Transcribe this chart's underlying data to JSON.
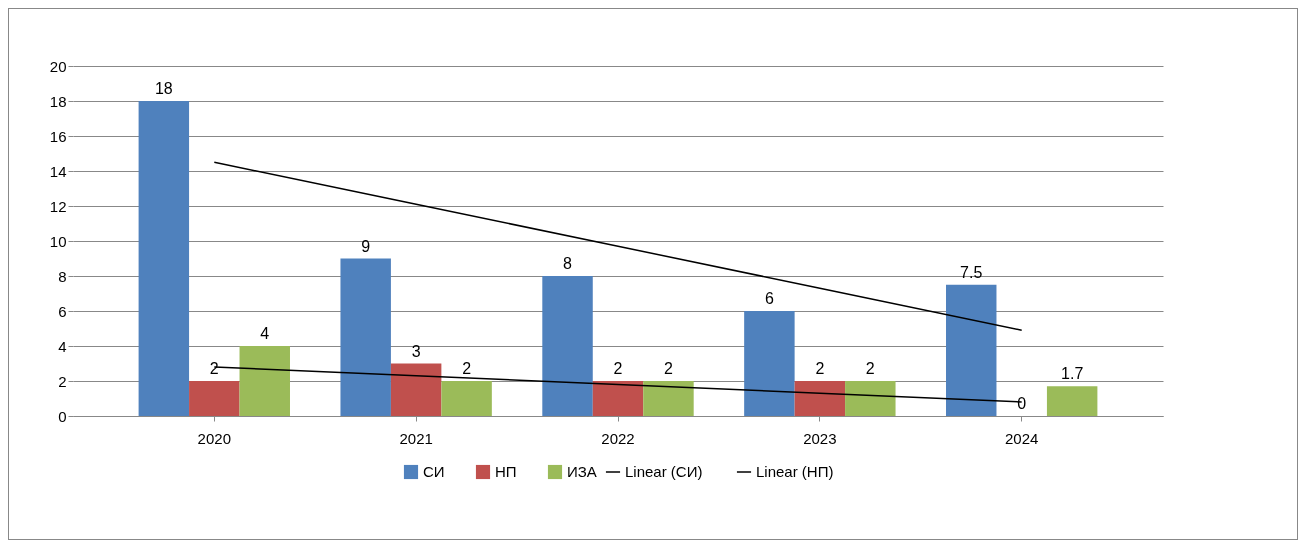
{
  "chart_data": {
    "type": "bar",
    "categories": [
      "2020",
      "2021",
      "2022",
      "2023",
      "2024"
    ],
    "series": [
      {
        "name": "СИ",
        "color": "#4f81bd",
        "values": [
          18,
          9,
          8,
          6,
          7.5
        ],
        "value_labels": [
          "18",
          "9",
          "8",
          "6",
          "7.5"
        ]
      },
      {
        "name": "НП",
        "color": "#c0504d",
        "values": [
          2,
          3,
          2,
          2,
          0
        ],
        "value_labels": [
          "2",
          "3",
          "2",
          "2",
          "0"
        ]
      },
      {
        "name": "ИЗА",
        "color": "#9bbb59",
        "values": [
          4,
          2,
          2,
          2,
          1.7
        ],
        "value_labels": [
          "4",
          "2",
          "2",
          "2",
          "1.7"
        ]
      },
      {
        "name": "Linear (СИ)",
        "type": "line",
        "color": "#000000",
        "values": [
          14.5,
          12.1,
          9.7,
          7.3,
          4.9
        ]
      },
      {
        "name": "Linear (НП)",
        "type": "line",
        "color": "#000000",
        "values": [
          2.8,
          2.3,
          1.8,
          1.3,
          0.8
        ]
      }
    ],
    "ylim": [
      0,
      20
    ],
    "yticks": [
      0,
      2,
      4,
      6,
      8,
      10,
      12,
      14,
      16,
      18,
      20
    ],
    "grid": "y",
    "legend": "bottom"
  }
}
